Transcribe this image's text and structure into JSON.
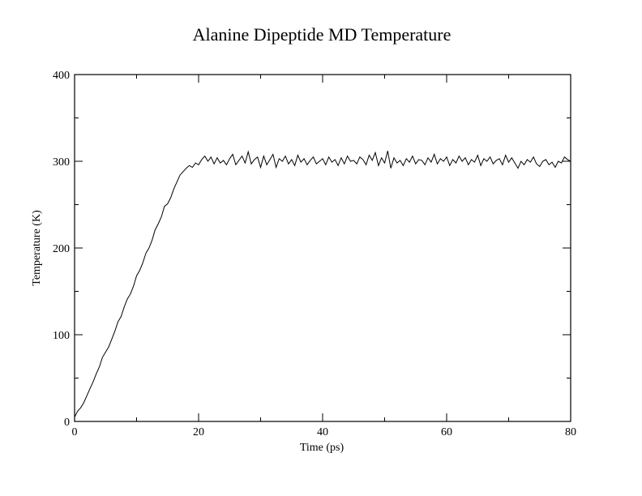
{
  "chart_data": {
    "type": "line",
    "title": "Alanine Dipeptide MD Temperature",
    "xlabel": "Time (ps)",
    "ylabel": "Temperature (K)",
    "xlim": [
      0,
      80
    ],
    "ylim": [
      0,
      400
    ],
    "x_ticks": [
      0,
      20,
      40,
      60,
      80
    ],
    "y_ticks": [
      0,
      100,
      200,
      300,
      400
    ],
    "grid": false,
    "legend": "none",
    "line_color": "#000000",
    "series": [
      {
        "x": [
          0,
          0.5,
          1,
          1.5,
          2,
          2.5,
          3,
          3.5,
          4,
          4.5,
          5,
          5.5,
          6,
          6.5,
          7,
          7.5,
          8,
          8.5,
          9,
          9.5,
          10,
          10.5,
          11,
          11.5,
          12,
          12.5,
          13,
          13.5,
          14,
          14.5,
          15,
          15.5,
          16,
          16.5,
          17,
          17.5,
          18,
          18.5,
          19,
          19.5,
          20,
          20.5,
          21,
          21.5,
          22,
          22.5,
          23,
          23.5,
          24,
          24.5,
          25,
          25.5,
          26,
          26.5,
          27,
          27.5,
          28,
          28.5,
          29,
          29.5,
          30,
          30.5,
          31,
          31.5,
          32,
          32.5,
          33,
          33.5,
          34,
          34.5,
          35,
          35.5,
          36,
          36.5,
          37,
          37.5,
          38,
          38.5,
          39,
          39.5,
          40,
          40.5,
          41,
          41.5,
          42,
          42.5,
          43,
          43.5,
          44,
          44.5,
          45,
          45.5,
          46,
          46.5,
          47,
          47.5,
          48,
          48.5,
          49,
          49.5,
          50,
          50.5,
          51,
          51.5,
          52,
          52.5,
          53,
          53.5,
          54,
          54.5,
          55,
          55.5,
          56,
          56.5,
          57,
          57.5,
          58,
          58.5,
          59,
          59.5,
          60,
          60.5,
          61,
          61.5,
          62,
          62.5,
          63,
          63.5,
          64,
          64.5,
          65,
          65.5,
          66,
          66.5,
          67,
          67.5,
          68,
          68.5,
          69,
          69.5,
          70,
          70.5,
          71,
          71.5,
          72,
          72.5,
          73,
          73.5,
          74,
          74.5,
          75,
          75.5,
          76,
          76.5,
          77,
          77.5,
          78,
          78.5,
          79,
          79.5,
          80
        ],
        "y": [
          5,
          12,
          16,
          22,
          30,
          38,
          46,
          55,
          63,
          74,
          80,
          86,
          95,
          104,
          115,
          121,
          132,
          141,
          147,
          156,
          168,
          174,
          183,
          194,
          200,
          209,
          221,
          228,
          236,
          248,
          251,
          258,
          268,
          276,
          284,
          288,
          292,
          295,
          293,
          298,
          296,
          302,
          306,
          300,
          305,
          297,
          304,
          298,
          301,
          296,
          303,
          308,
          296,
          301,
          306,
          298,
          311,
          297,
          302,
          305,
          293,
          306,
          296,
          302,
          308,
          293,
          303,
          300,
          306,
          297,
          302,
          295,
          307,
          299,
          303,
          296,
          301,
          305,
          297,
          300,
          303,
          296,
          305,
          299,
          302,
          295,
          304,
          297,
          306,
          300,
          301,
          297,
          305,
          302,
          296,
          307,
          301,
          310,
          295,
          304,
          298,
          312,
          292,
          304,
          298,
          301,
          295,
          303,
          299,
          306,
          297,
          302,
          301,
          296,
          304,
          299,
          308,
          297,
          303,
          300,
          305,
          295,
          302,
          298,
          306,
          300,
          304,
          296,
          302,
          299,
          307,
          295,
          303,
          300,
          305,
          297,
          301,
          303,
          296,
          307,
          299,
          304,
          298,
          292,
          300,
          296,
          302,
          299,
          305,
          297,
          294,
          300,
          302,
          296,
          299,
          293,
          300,
          298,
          305,
          302,
          300
        ]
      }
    ]
  }
}
